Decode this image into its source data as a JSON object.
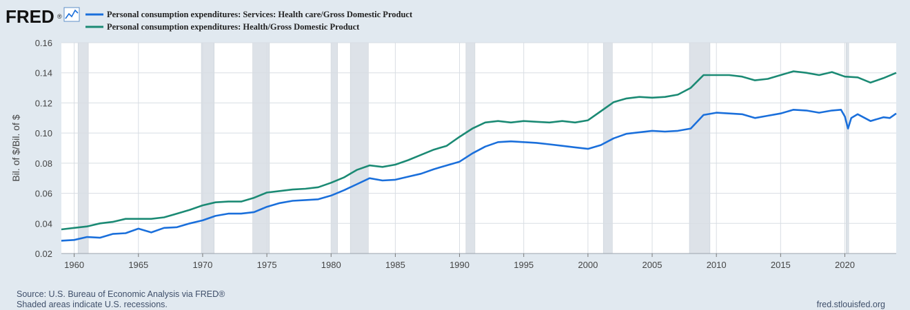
{
  "brand": {
    "logo_text": "FRED",
    "registered_mark": "®",
    "logo_icon": "line-chart-icon"
  },
  "colors": {
    "series1": "#1a6fdb",
    "series2": "#1b8a74",
    "recession": "#dde2e8",
    "background": "#e1e9f0",
    "plot_bg": "#ffffff"
  },
  "footer": {
    "source": "Source: U.S. Bureau of Economic Analysis via FRED®",
    "note": "Shaded areas indicate U.S. recessions.",
    "url": "fred.stlouisfed.org"
  },
  "chart_data": {
    "type": "line",
    "ylabel": "Bil. of $/Bil. of $",
    "ylim": [
      0.02,
      0.16
    ],
    "yticks": [
      "0.02",
      "0.04",
      "0.06",
      "0.08",
      "0.10",
      "0.12",
      "0.14",
      "0.16"
    ],
    "xlim": [
      1959,
      2024
    ],
    "xticks": [
      "1960",
      "1965",
      "1970",
      "1975",
      "1980",
      "1985",
      "1990",
      "1995",
      "2000",
      "2005",
      "2010",
      "2015",
      "2020"
    ],
    "grid": true,
    "legend_position": "top-left",
    "recessions": [
      [
        1960.3,
        1961.1
      ],
      [
        1969.9,
        1970.9
      ],
      [
        1973.9,
        1975.2
      ],
      [
        1980.0,
        1980.5
      ],
      [
        1981.5,
        1982.9
      ],
      [
        1990.5,
        1991.2
      ],
      [
        2001.2,
        2001.9
      ],
      [
        2007.9,
        2009.5
      ],
      [
        2020.1,
        2020.3
      ]
    ],
    "series": [
      {
        "name": "Personal consumption expenditures: Services: Health care/Gross Domestic Product",
        "color": "#1a6fdb",
        "points": [
          [
            1959,
            0.0285
          ],
          [
            1960,
            0.029
          ],
          [
            1961,
            0.031
          ],
          [
            1962,
            0.0305
          ],
          [
            1963,
            0.033
          ],
          [
            1964,
            0.0335
          ],
          [
            1965,
            0.0365
          ],
          [
            1966,
            0.034
          ],
          [
            1967,
            0.037
          ],
          [
            1968,
            0.0375
          ],
          [
            1969,
            0.04
          ],
          [
            1970,
            0.042
          ],
          [
            1971,
            0.045
          ],
          [
            1972,
            0.0465
          ],
          [
            1973,
            0.0465
          ],
          [
            1974,
            0.0475
          ],
          [
            1975,
            0.051
          ],
          [
            1976,
            0.0535
          ],
          [
            1977,
            0.055
          ],
          [
            1978,
            0.0555
          ],
          [
            1979,
            0.056
          ],
          [
            1980,
            0.0585
          ],
          [
            1981,
            0.062
          ],
          [
            1982,
            0.066
          ],
          [
            1983,
            0.07
          ],
          [
            1984,
            0.0685
          ],
          [
            1985,
            0.069
          ],
          [
            1986,
            0.071
          ],
          [
            1987,
            0.073
          ],
          [
            1988,
            0.076
          ],
          [
            1989,
            0.0785
          ],
          [
            1990,
            0.081
          ],
          [
            1991,
            0.0865
          ],
          [
            1992,
            0.091
          ],
          [
            1993,
            0.094
          ],
          [
            1994,
            0.0945
          ],
          [
            1995,
            0.094
          ],
          [
            1996,
            0.0935
          ],
          [
            1997,
            0.0925
          ],
          [
            1998,
            0.0915
          ],
          [
            1999,
            0.0905
          ],
          [
            2000,
            0.0895
          ],
          [
            2001,
            0.092
          ],
          [
            2002,
            0.0965
          ],
          [
            2003,
            0.0995
          ],
          [
            2004,
            0.1005
          ],
          [
            2005,
            0.1015
          ],
          [
            2006,
            0.101
          ],
          [
            2007,
            0.1015
          ],
          [
            2008,
            0.103
          ],
          [
            2009,
            0.112
          ],
          [
            2010,
            0.1135
          ],
          [
            2011,
            0.113
          ],
          [
            2012,
            0.1125
          ],
          [
            2013,
            0.11
          ],
          [
            2014,
            0.1115
          ],
          [
            2015,
            0.113
          ],
          [
            2016,
            0.1155
          ],
          [
            2017,
            0.115
          ],
          [
            2018,
            0.1135
          ],
          [
            2019,
            0.115
          ],
          [
            2019.7,
            0.1155
          ],
          [
            2020.0,
            0.111
          ],
          [
            2020.25,
            0.103
          ],
          [
            2020.5,
            0.11
          ],
          [
            2021,
            0.1125
          ],
          [
            2022,
            0.108
          ],
          [
            2023,
            0.1105
          ],
          [
            2023.5,
            0.11
          ],
          [
            2024,
            0.113
          ]
        ]
      },
      {
        "name": "Personal consumption expenditures: Health/Gross Domestic Product",
        "color": "#1b8a74",
        "points": [
          [
            1959,
            0.036
          ],
          [
            1960,
            0.037
          ],
          [
            1961,
            0.038
          ],
          [
            1962,
            0.04
          ],
          [
            1963,
            0.041
          ],
          [
            1964,
            0.043
          ],
          [
            1965,
            0.043
          ],
          [
            1966,
            0.043
          ],
          [
            1967,
            0.044
          ],
          [
            1968,
            0.0465
          ],
          [
            1969,
            0.049
          ],
          [
            1970,
            0.052
          ],
          [
            1971,
            0.054
          ],
          [
            1972,
            0.0545
          ],
          [
            1973,
            0.0545
          ],
          [
            1974,
            0.057
          ],
          [
            1975,
            0.0605
          ],
          [
            1976,
            0.0615
          ],
          [
            1977,
            0.0625
          ],
          [
            1978,
            0.063
          ],
          [
            1979,
            0.064
          ],
          [
            1980,
            0.067
          ],
          [
            1981,
            0.0705
          ],
          [
            1982,
            0.0755
          ],
          [
            1983,
            0.0785
          ],
          [
            1984,
            0.0775
          ],
          [
            1985,
            0.079
          ],
          [
            1986,
            0.082
          ],
          [
            1987,
            0.0855
          ],
          [
            1988,
            0.089
          ],
          [
            1989,
            0.0915
          ],
          [
            1990,
            0.0975
          ],
          [
            1991,
            0.103
          ],
          [
            1992,
            0.107
          ],
          [
            1993,
            0.108
          ],
          [
            1994,
            0.107
          ],
          [
            1995,
            0.108
          ],
          [
            1996,
            0.1075
          ],
          [
            1997,
            0.107
          ],
          [
            1998,
            0.108
          ],
          [
            1999,
            0.107
          ],
          [
            2000,
            0.1085
          ],
          [
            2001,
            0.1145
          ],
          [
            2002,
            0.1205
          ],
          [
            2003,
            0.123
          ],
          [
            2004,
            0.124
          ],
          [
            2005,
            0.1235
          ],
          [
            2006,
            0.124
          ],
          [
            2007,
            0.1255
          ],
          [
            2008,
            0.13
          ],
          [
            2009,
            0.1385
          ],
          [
            2010,
            0.1385
          ],
          [
            2011,
            0.1385
          ],
          [
            2012,
            0.1375
          ],
          [
            2013,
            0.135
          ],
          [
            2014,
            0.136
          ],
          [
            2015,
            0.1385
          ],
          [
            2016,
            0.141
          ],
          [
            2017,
            0.14
          ],
          [
            2018,
            0.1385
          ],
          [
            2019,
            0.1405
          ],
          [
            2020,
            0.1375
          ],
          [
            2021,
            0.137
          ],
          [
            2022,
            0.1335
          ],
          [
            2023,
            0.1365
          ],
          [
            2024,
            0.14
          ]
        ]
      }
    ]
  }
}
